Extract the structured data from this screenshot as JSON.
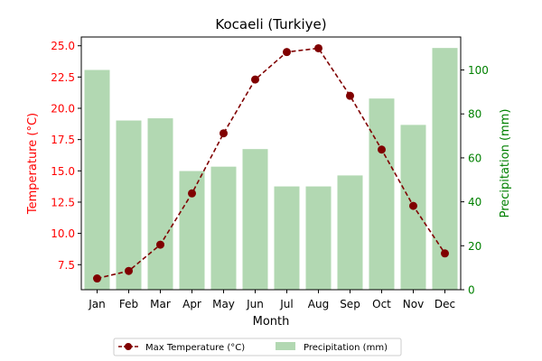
{
  "chart_data": {
    "type": "bar+line",
    "title": "Kocaeli (Turkiye)",
    "xlabel": "Month",
    "ylabel_left": "Temperature (°C)",
    "ylabel_right": "Precipitation (mm)",
    "categories": [
      "Jan",
      "Feb",
      "Mar",
      "Apr",
      "May",
      "Jun",
      "Jul",
      "Aug",
      "Sep",
      "Oct",
      "Nov",
      "Dec"
    ],
    "ylim_left": [
      5.5,
      25.7
    ],
    "ylim_right": [
      0,
      115
    ],
    "yticks_left": [
      "7.5",
      "10.0",
      "12.5",
      "15.0",
      "17.5",
      "20.0",
      "22.5",
      "25.0"
    ],
    "yticks_right": [
      "0",
      "20",
      "40",
      "60",
      "80",
      "100"
    ],
    "grid": false,
    "legend_placement": "bottom-center",
    "series": [
      {
        "name": "Max Temperature (°C)",
        "kind": "line",
        "axis": "left",
        "color": "#800000",
        "values": [
          6.4,
          7.0,
          9.1,
          13.2,
          18.0,
          22.3,
          24.5,
          24.8,
          21.0,
          16.7,
          12.2,
          8.4
        ]
      },
      {
        "name": "Precipitation (mm)",
        "kind": "bar",
        "axis": "right",
        "color": "#b2d8b2",
        "values": [
          100,
          77,
          78,
          54,
          56,
          64,
          47,
          47,
          52,
          87,
          75,
          110
        ]
      }
    ],
    "colors": {
      "left_axis": "#ff0000",
      "right_axis": "#008000",
      "line": "#800000",
      "bar": "#b2d8b2"
    }
  }
}
